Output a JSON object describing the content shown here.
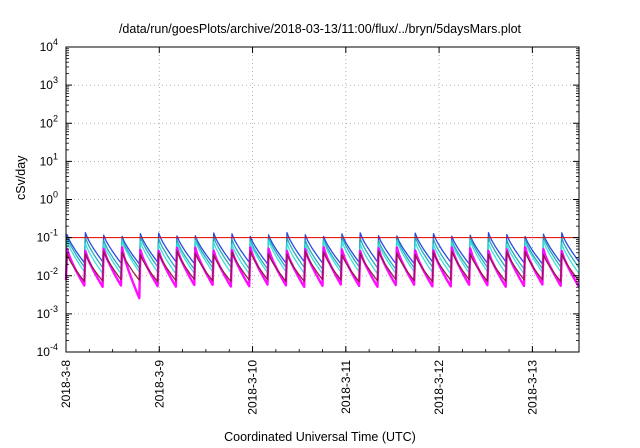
{
  "chart_data": {
    "type": "line",
    "title": "/data/run/goesPlots/archive/2018-03-13/11:00/flux/../bryn/5daysMars.plot",
    "xlabel": "Coordinated Universal Time (UTC)",
    "ylabel": "cSv/day",
    "yscale": "log",
    "ylim": [
      0.0001,
      10000
    ],
    "y_ticks": [
      {
        "base": "10",
        "exp": "-4"
      },
      {
        "base": "10",
        "exp": "-3"
      },
      {
        "base": "10",
        "exp": "-2"
      },
      {
        "base": "10",
        "exp": "-1"
      },
      {
        "base": "10",
        "exp": "0"
      },
      {
        "base": "10",
        "exp": "1"
      },
      {
        "base": "10",
        "exp": "2"
      },
      {
        "base": "10",
        "exp": "3"
      },
      {
        "base": "10",
        "exp": "4"
      }
    ],
    "x_range": [
      "2018-03-08",
      "2018-03-13 12:00"
    ],
    "x_ticks": [
      "2018-3-8",
      "2018-3-9",
      "2018-3-10",
      "2018-3-11",
      "2018-3-12",
      "2018-3-13"
    ],
    "grid": true,
    "periodic_cycles_per_day": 5,
    "series": [
      {
        "color": "#1f3fe0",
        "peak": 0.12,
        "trough": 0.022
      },
      {
        "color": "#19a7b4",
        "peak": 0.095,
        "trough": 0.016
      },
      {
        "color": "#30e0d8",
        "peak": 0.075,
        "trough": 0.012
      },
      {
        "color": "#ff00ff",
        "peak": 0.05,
        "trough": 0.0055
      },
      {
        "color": "#8b1a3a",
        "peak": 0.04,
        "trough": 0.0075
      }
    ],
    "reference_line": {
      "value": 0.1,
      "color": "#e00000"
    },
    "notable_dip": {
      "x": "2018-03-08 18:00",
      "y": 0.0026
    }
  }
}
